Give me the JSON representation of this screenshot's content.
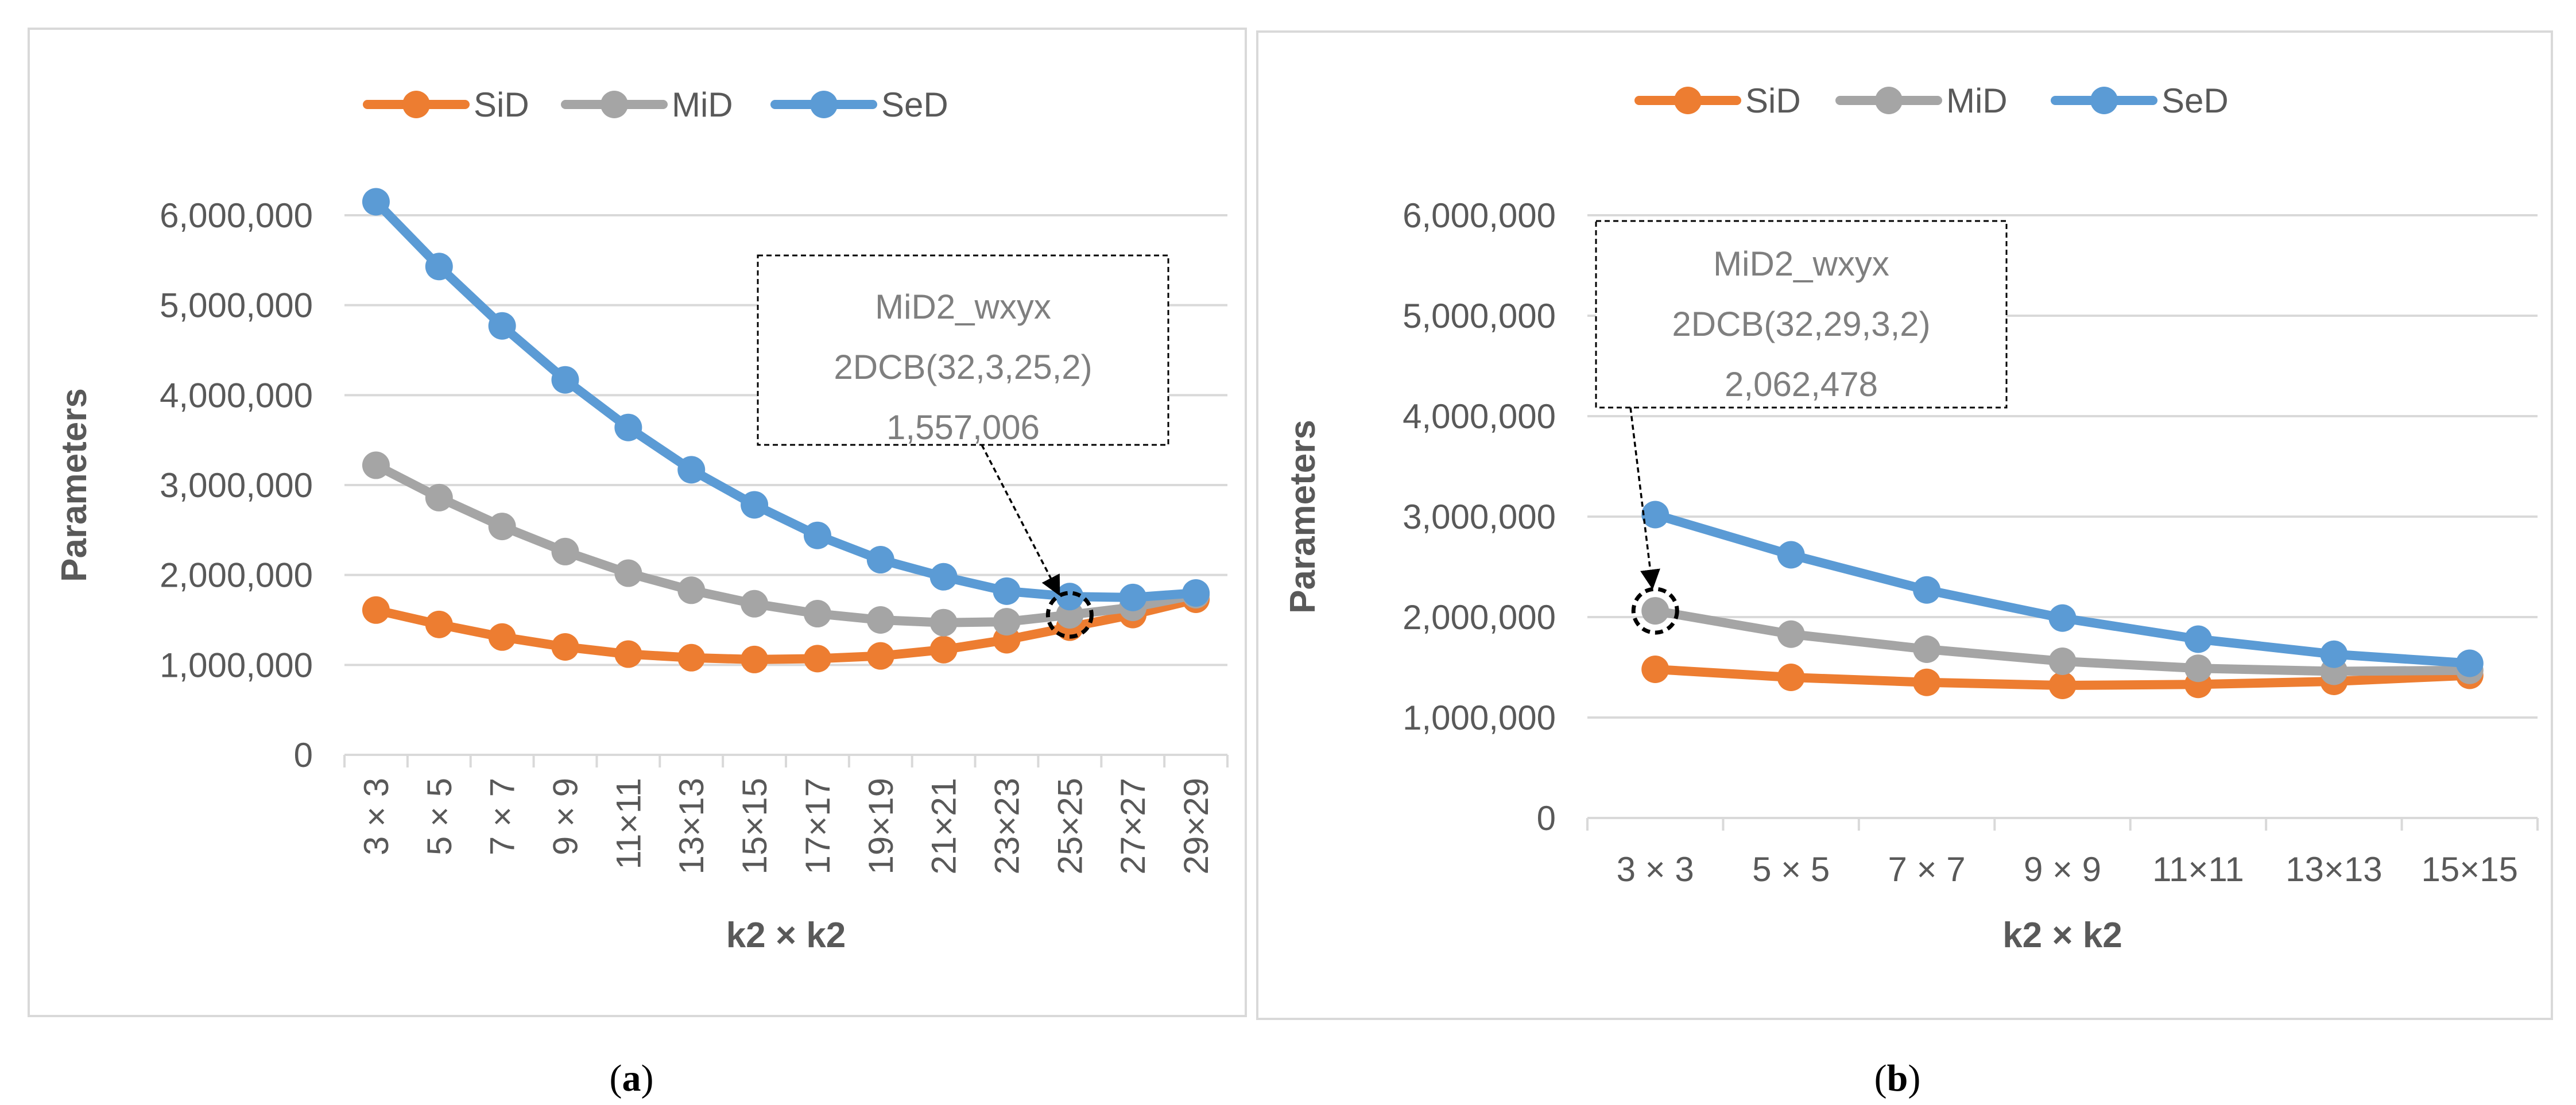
{
  "figure": {
    "caption_a_letter": "a",
    "caption_b_letter": "b"
  },
  "chart_data": [
    {
      "type": "line",
      "panel": "a",
      "title": "",
      "xlabel": "k2 × k2",
      "ylabel": "Parameters",
      "ylim": [
        0,
        6000000
      ],
      "yticks": [
        0,
        1000000,
        2000000,
        3000000,
        4000000,
        5000000,
        6000000
      ],
      "ytick_labels": [
        "0",
        "1,000,000",
        "2,000,000",
        "3,000,000",
        "4,000,000",
        "5,000,000",
        "6,000,000"
      ],
      "grid": true,
      "legend_position": "top",
      "categories": [
        "3 × 3",
        "5 × 5",
        "7 × 7",
        "9 × 9",
        "11×11",
        "13×13",
        "15×15",
        "17×17",
        "19×19",
        "21×21",
        "23×23",
        "25×25",
        "27×27",
        "29×29"
      ],
      "series": [
        {
          "name": "SiD",
          "color": "#ED7D31",
          "values": [
            1610000,
            1450000,
            1310000,
            1200000,
            1120000,
            1080000,
            1060000,
            1070000,
            1100000,
            1170000,
            1280000,
            1420000,
            1560000,
            1730000
          ]
        },
        {
          "name": "MiD",
          "color": "#A5A5A5",
          "values": [
            3220000,
            2860000,
            2540000,
            2260000,
            2020000,
            1830000,
            1680000,
            1570000,
            1500000,
            1470000,
            1480000,
            1557006,
            1640000,
            1780000
          ]
        },
        {
          "name": "SeD",
          "color": "#5B9BD5",
          "values": [
            6150000,
            5430000,
            4770000,
            4170000,
            3640000,
            3170000,
            2780000,
            2440000,
            2170000,
            1980000,
            1820000,
            1760000,
            1750000,
            1800000
          ]
        }
      ],
      "annotation": {
        "lines": [
          "MiD2_wxyx",
          "2DCB(32,3,25,2)",
          "1,557,006"
        ],
        "category_index": 11,
        "value": 1557006
      }
    },
    {
      "type": "line",
      "panel": "b",
      "title": "",
      "xlabel": "k2 × k2",
      "ylabel": "Parameters",
      "ylim": [
        0,
        6000000
      ],
      "yticks": [
        0,
        1000000,
        2000000,
        3000000,
        4000000,
        5000000,
        6000000
      ],
      "ytick_labels": [
        "0",
        "1,000,000",
        "2,000,000",
        "3,000,000",
        "4,000,000",
        "5,000,000",
        "6,000,000"
      ],
      "grid": true,
      "legend_position": "top",
      "categories": [
        "3 × 3",
        "5 × 5",
        "7 × 7",
        "9 × 9",
        "11×11",
        "13×13",
        "15×15"
      ],
      "series": [
        {
          "name": "SiD",
          "color": "#ED7D31",
          "values": [
            1480000,
            1400000,
            1350000,
            1320000,
            1330000,
            1360000,
            1420000
          ]
        },
        {
          "name": "MiD",
          "color": "#A5A5A5",
          "values": [
            2062478,
            1830000,
            1680000,
            1560000,
            1490000,
            1460000,
            1470000
          ]
        },
        {
          "name": "SeD",
          "color": "#5B9BD5",
          "values": [
            3020000,
            2620000,
            2270000,
            1990000,
            1780000,
            1630000,
            1540000
          ]
        }
      ],
      "annotation": {
        "lines": [
          "MiD2_wxyx",
          "2DCB(32,29,3,2)",
          "2,062,478"
        ],
        "category_index": 0,
        "value": 2062478
      }
    }
  ]
}
